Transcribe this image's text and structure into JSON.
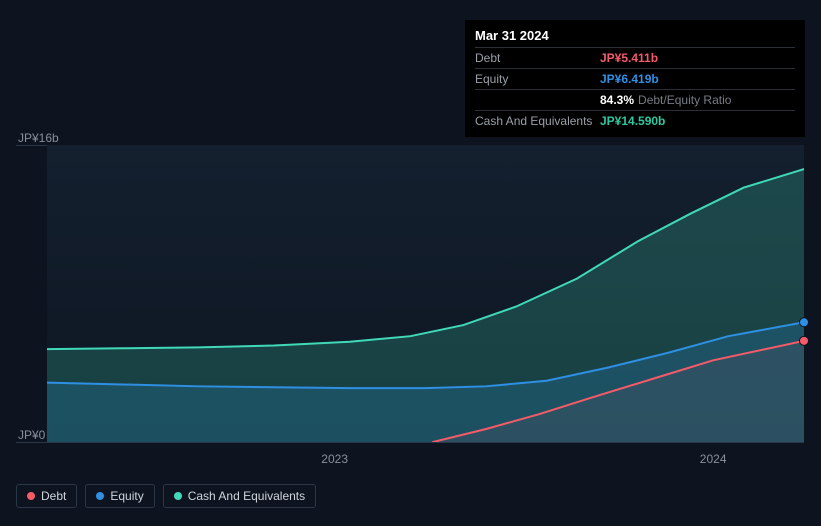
{
  "tooltip": {
    "date": "Mar 31 2024",
    "rows": [
      {
        "label": "Debt",
        "value": "JP¥5.411b",
        "color": "#f45b69"
      },
      {
        "label": "Equity",
        "value": "JP¥6.419b",
        "color": "#2f8fe3"
      },
      {
        "label": "",
        "value": "84.3%",
        "suffix": "Debt/Equity Ratio",
        "color": "#ffffff"
      },
      {
        "label": "Cash And Equivalents",
        "value": "JP¥14.590b",
        "color": "#2fc7a1"
      }
    ]
  },
  "chart": {
    "type": "area",
    "background": "#0d1420",
    "plot_bg_start": "#14202f",
    "plot_bg_end": "#0d1521",
    "grid_color": "#2a3748",
    "y": {
      "min": 0,
      "max": 16,
      "ticks": [
        {
          "v": 16,
          "label": "JP¥16b"
        },
        {
          "v": 0,
          "label": "JP¥0"
        }
      ]
    },
    "x": {
      "min": 0,
      "max": 100,
      "ticks": [
        {
          "v": 38,
          "label": "2023"
        },
        {
          "v": 88,
          "label": "2024"
        }
      ]
    },
    "series": [
      {
        "name": "Cash And Equivalents",
        "color": "#40d9b8",
        "fill": "rgba(64,217,184,0.22)",
        "line_width": 2,
        "points": [
          [
            0,
            5.0
          ],
          [
            10,
            5.05
          ],
          [
            20,
            5.1
          ],
          [
            30,
            5.2
          ],
          [
            40,
            5.4
          ],
          [
            48,
            5.7
          ],
          [
            55,
            6.3
          ],
          [
            62,
            7.3
          ],
          [
            70,
            8.8
          ],
          [
            78,
            10.8
          ],
          [
            85,
            12.3
          ],
          [
            92,
            13.7
          ],
          [
            100,
            14.7
          ]
        ]
      },
      {
        "name": "Equity",
        "color": "#2f8fe3",
        "fill": "rgba(47,143,227,0.20)",
        "line_width": 2,
        "points": [
          [
            0,
            3.2
          ],
          [
            10,
            3.1
          ],
          [
            20,
            3.0
          ],
          [
            30,
            2.95
          ],
          [
            40,
            2.9
          ],
          [
            50,
            2.9
          ],
          [
            58,
            3.0
          ],
          [
            66,
            3.3
          ],
          [
            74,
            4.0
          ],
          [
            82,
            4.8
          ],
          [
            90,
            5.7
          ],
          [
            100,
            6.45
          ]
        ]
      },
      {
        "name": "Debt",
        "color": "#f45b69",
        "fill": "rgba(244,91,105,0.08)",
        "line_width": 2,
        "points": [
          [
            51,
            0
          ],
          [
            58,
            0.7
          ],
          [
            65,
            1.5
          ],
          [
            72,
            2.4
          ],
          [
            80,
            3.4
          ],
          [
            88,
            4.4
          ],
          [
            100,
            5.45
          ]
        ]
      }
    ],
    "end_markers": [
      {
        "color": "#2f8fe3",
        "y": 6.45
      },
      {
        "color": "#f45b69",
        "y": 5.45
      }
    ]
  },
  "legend": [
    {
      "label": "Debt",
      "color": "#f45b69",
      "interactable": true
    },
    {
      "label": "Equity",
      "color": "#2f8fe3",
      "interactable": true
    },
    {
      "label": "Cash And Equivalents",
      "color": "#40d9b8",
      "interactable": true
    }
  ]
}
